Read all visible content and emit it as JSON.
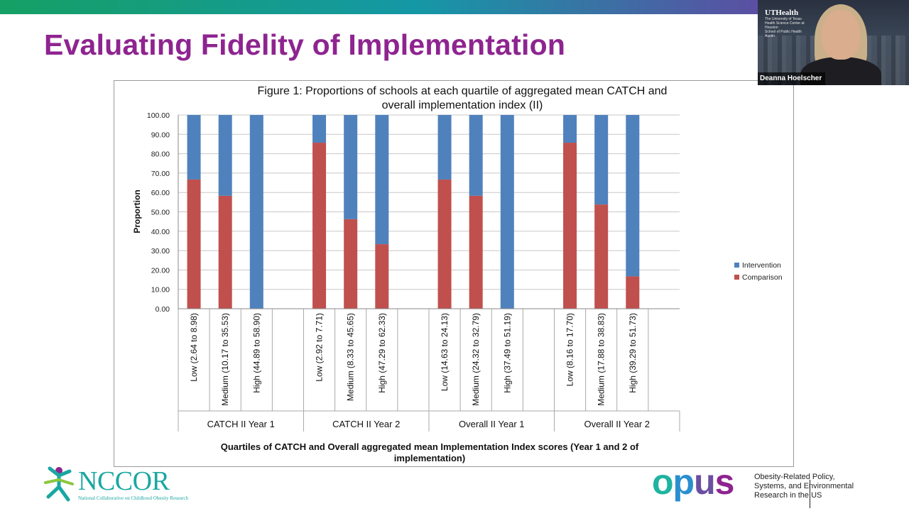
{
  "slide": {
    "title": "Evaluating Fidelity of Implementation"
  },
  "video": {
    "speaker_name": "Deanna Hoelscher",
    "logo_name": "UTHealth",
    "logo_sub_1": "The University of Texas",
    "logo_sub_2": "Health Science Center at Houston",
    "logo_sub_3": "School of Public Health",
    "logo_sub_4": "Austin"
  },
  "footer": {
    "nccor_name": "NCCOR",
    "nccor_full": "National Collaborative on Childhood Obesity Research",
    "opus_name": "opus",
    "opus_tagline_1": "Obesity-Related Policy,",
    "opus_tagline_2": "Systems, and Environmental",
    "opus_tagline_3": "Research in the US"
  },
  "colors": {
    "title": "#8e2490",
    "intervention": "#4f81bd",
    "comparison": "#c0504d",
    "opus_o": "#1fb3a0",
    "opus_p": "#2a8fcf",
    "opus_u": "#6b4fa0",
    "opus_s": "#8e2490"
  },
  "chart_data": {
    "type": "bar",
    "stacked": true,
    "title_line1": "Figure 1: Proportions of schools at each quartile of aggregated mean CATCH and",
    "title_line2": "overall implementation index (II)",
    "ylabel": "Proportion",
    "xlabel_line1": "Quartiles of CATCH and Overall aggregated mean Implementation Index scores (Year 1 and 2 of",
    "xlabel_line2": "implementation)",
    "ylim": [
      0,
      100
    ],
    "yticks": [
      "0.00",
      "10.00",
      "20.00",
      "30.00",
      "40.00",
      "50.00",
      "60.00",
      "70.00",
      "80.00",
      "90.00",
      "100.00"
    ],
    "legend_position": "right",
    "groups": [
      "CATCH II Year 1",
      "CATCH II Year 2",
      "Overall II Year 1",
      "Overall II Year 2"
    ],
    "categories": [
      [
        "Low (2.64 to 8.98)",
        "Medium (10.17 to 35.53)",
        "High (44.89 to 58.90)"
      ],
      [
        "Low (2.92 to 7.71)",
        "Medium (8.33 to 45.65)",
        "High (47.29 to 62.33)"
      ],
      [
        "Low (14.63 to 24.13)",
        "Medium (24.32 to 32.79)",
        "High (37.49 to 51.19)"
      ],
      [
        "Low (8.16 to 17.70)",
        "Medium (17.88 to 38.83)",
        "High (39.29 to 51.73)"
      ]
    ],
    "series": [
      {
        "name": "Comparison",
        "values": [
          [
            66.7,
            58.3,
            0
          ],
          [
            85.7,
            46.2,
            33.3
          ],
          [
            66.7,
            58.3,
            0
          ],
          [
            85.7,
            53.8,
            16.7
          ]
        ]
      },
      {
        "name": "Intervention",
        "values": [
          [
            33.3,
            41.7,
            100
          ],
          [
            14.3,
            53.8,
            66.7
          ],
          [
            33.3,
            41.7,
            100
          ],
          [
            14.3,
            46.2,
            83.3
          ]
        ]
      }
    ]
  }
}
